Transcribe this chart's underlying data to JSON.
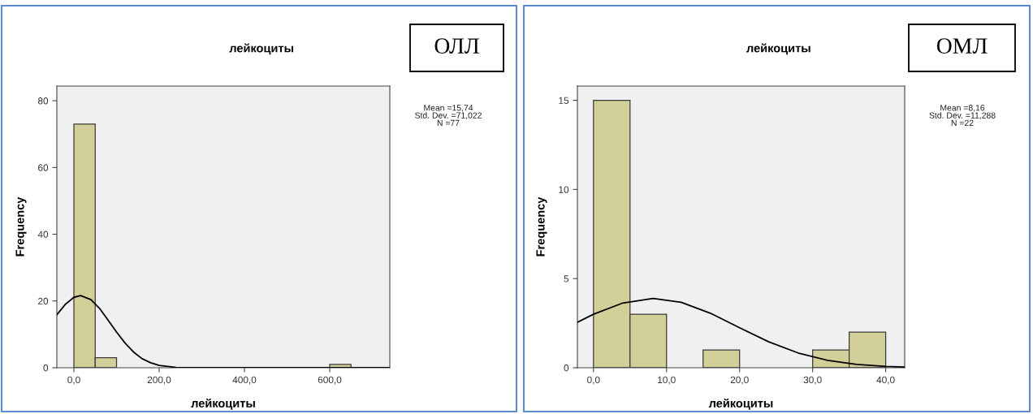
{
  "chart_data": [
    {
      "type": "histogram",
      "title": "лейкоциты",
      "xlabel": "лейкоциты",
      "ylabel": "Frequency",
      "bins": [
        0,
        50,
        100,
        150,
        200,
        250,
        300,
        350,
        400,
        450,
        500,
        550,
        600,
        650
      ],
      "values": [
        73,
        3,
        0,
        0,
        0,
        0,
        0,
        0,
        0,
        0,
        0,
        0,
        1
      ],
      "color": "#d3cf98",
      "series": [
        {
          "type": "line",
          "color": "#000000",
          "x": [
            -40,
            -20,
            0,
            15.74,
            40,
            60,
            80,
            100,
            120,
            140,
            160,
            180,
            200,
            240,
            280,
            740
          ],
          "values": [
            15.9,
            19.0,
            21.1,
            21.6,
            20.4,
            17.8,
            14.3,
            10.7,
            7.4,
            4.7,
            2.7,
            1.5,
            0.7,
            0.1,
            0,
            0
          ]
        }
      ],
      "xlim": [
        -40,
        741
      ],
      "ylim": [
        0,
        84.4
      ],
      "xticks": [
        {
          "value": 0,
          "label": "0,0"
        },
        {
          "value": 200,
          "label": "200,0"
        },
        {
          "value": 400,
          "label": "400,0"
        },
        {
          "value": 600,
          "label": "600,0"
        }
      ],
      "yticks": [
        0,
        20,
        40,
        60,
        80
      ],
      "annotations": [
        "ОЛЛ",
        "Mean =15,74\nStd. Dev. =71,022\nN =77"
      ]
    },
    {
      "type": "histogram",
      "title": "лейкоциты",
      "xlabel": "лейкоциты",
      "ylabel": "Frequency",
      "bins": [
        0,
        5,
        10,
        15,
        20,
        25,
        30,
        35,
        40
      ],
      "values": [
        15,
        3,
        0,
        1,
        0,
        0,
        1,
        2
      ],
      "color": "#d3cf98",
      "series": [
        {
          "type": "line",
          "color": "#000000",
          "x": [
            -2.2,
            0,
            4,
            8.16,
            12,
            16,
            20,
            24,
            28,
            32,
            36,
            40,
            42.6
          ],
          "values": [
            2.55,
            3.0,
            3.63,
            3.89,
            3.67,
            3.06,
            2.24,
            1.45,
            0.83,
            0.42,
            0.19,
            0.07,
            0.04
          ]
        }
      ],
      "xlim": [
        -2.2,
        42.6
      ],
      "ylim": [
        0,
        15.8
      ],
      "xticks": [
        {
          "value": 0,
          "label": "0,0"
        },
        {
          "value": 10,
          "label": "10,0"
        },
        {
          "value": 20,
          "label": "20,0"
        },
        {
          "value": 30,
          "label": "30,0"
        },
        {
          "value": 40,
          "label": "40,0"
        }
      ],
      "yticks": [
        0,
        5,
        10,
        15
      ],
      "annotations": [
        "ОМЛ",
        "Mean =8,16\nStd. Dev. =11,288\nN =22"
      ]
    }
  ]
}
